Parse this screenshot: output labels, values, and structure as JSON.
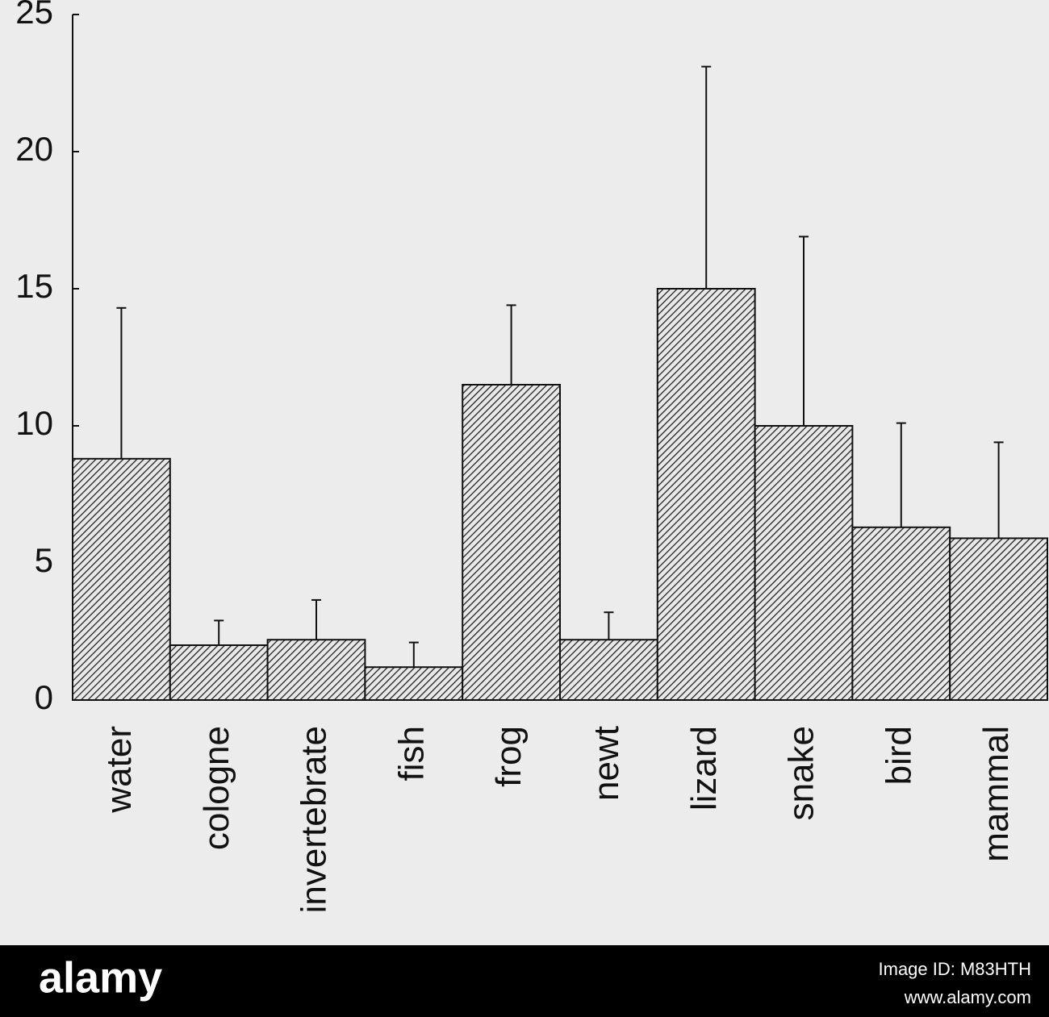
{
  "chart_data": {
    "type": "bar",
    "categories": [
      "water",
      "cologne",
      "invertebrate",
      "fish",
      "frog",
      "newt",
      "lizard",
      "snake",
      "bird",
      "mammal"
    ],
    "values": [
      8.8,
      2.0,
      2.2,
      1.2,
      11.5,
      2.2,
      15.0,
      10.0,
      6.3,
      5.9
    ],
    "errors": [
      5.5,
      0.9,
      1.45,
      0.9,
      2.9,
      1.0,
      8.1,
      6.9,
      3.8,
      3.5
    ],
    "color": "#222222",
    "hatch": true,
    "ylim": [
      0,
      25
    ],
    "yticks": [
      0,
      5,
      10,
      15,
      20,
      25
    ],
    "grid": false
  },
  "footer": {
    "brand": "alamy",
    "image_id": "Image ID: M83HTH",
    "url": "www.alamy.com"
  }
}
